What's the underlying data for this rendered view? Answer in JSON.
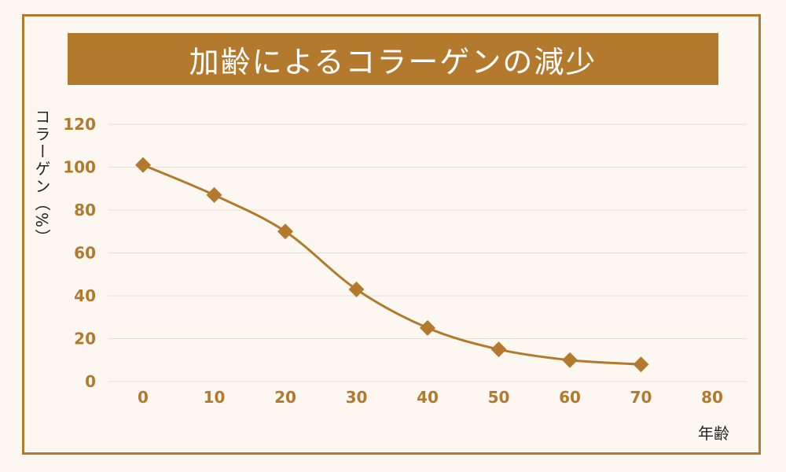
{
  "chart_data": {
    "type": "line",
    "title": "加齢によるコラーゲンの減少",
    "xlabel": "年齢",
    "ylabel": "コラーゲン（%）",
    "x": [
      0,
      10,
      20,
      30,
      40,
      50,
      60,
      70
    ],
    "series": [
      {
        "values": [
          101,
          87,
          70,
          43,
          25,
          15,
          10,
          8
        ]
      }
    ],
    "xlim": [
      0,
      80
    ],
    "ylim": [
      0,
      120
    ],
    "xticks": [
      "0",
      "10",
      "20",
      "30",
      "40",
      "50",
      "60",
      "70",
      "80"
    ],
    "yticks": [
      "0",
      "20",
      "40",
      "60",
      "80",
      "100",
      "120"
    ],
    "grid": true,
    "legend": "none",
    "marker": "diamond",
    "colors": {
      "accent": "#b37a2e",
      "background": "#fcf7f0",
      "grid": "#e7dfd4"
    }
  }
}
